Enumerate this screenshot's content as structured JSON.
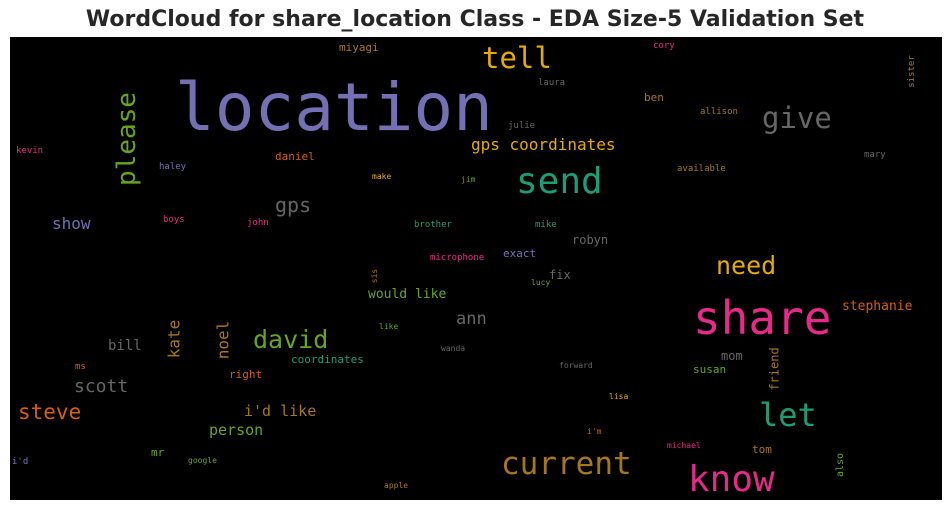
{
  "chart_data": {
    "type": "wordcloud",
    "title": "WordCloud for share_location Class - EDA Size-5 Validation Set",
    "background": "#000000",
    "colormap": "Dark2",
    "words": [
      {
        "text": "location",
        "color": "#7570b3"
      },
      {
        "text": "share",
        "color": "#e7298a"
      },
      {
        "text": "know",
        "color": "#e7298a"
      },
      {
        "text": "current",
        "color": "#a6761d"
      },
      {
        "text": "send",
        "color": "#1b9e77"
      },
      {
        "text": "let",
        "color": "#1b9e77"
      },
      {
        "text": "give",
        "color": "#666666"
      },
      {
        "text": "tell",
        "color": "#e6ab02"
      },
      {
        "text": "please",
        "color": "#66a61e"
      },
      {
        "text": "need",
        "color": "#e6ab02"
      },
      {
        "text": "david",
        "color": "#66a61e"
      },
      {
        "text": "steve",
        "color": "#d95f02"
      },
      {
        "text": "gps coordinates",
        "color": "#e6ab02"
      },
      {
        "text": "gps",
        "color": "#666666"
      },
      {
        "text": "scott",
        "color": "#666666"
      },
      {
        "text": "show",
        "color": "#7570b3"
      },
      {
        "text": "ann",
        "color": "#666666"
      },
      {
        "text": "kate",
        "color": "#a6761d"
      },
      {
        "text": "noel",
        "color": "#a6761d"
      },
      {
        "text": "i'd like",
        "color": "#a6761d"
      },
      {
        "text": "person",
        "color": "#66a61e"
      },
      {
        "text": "stephanie",
        "color": "#d95f02"
      },
      {
        "text": "bill",
        "color": "#666666"
      },
      {
        "text": "would like",
        "color": "#66a61e"
      },
      {
        "text": "robyn",
        "color": "#666666"
      },
      {
        "text": "friend",
        "color": "#a6761d"
      },
      {
        "text": "mom",
        "color": "#666666"
      },
      {
        "text": "susan",
        "color": "#66a61e"
      },
      {
        "text": "fix",
        "color": "#666666"
      },
      {
        "text": "exact",
        "color": "#7570b3"
      },
      {
        "text": "daniel",
        "color": "#d95f02"
      },
      {
        "text": "ben",
        "color": "#a6761d"
      },
      {
        "text": "miyagi",
        "color": "#a6761d"
      },
      {
        "text": "tom",
        "color": "#a6761d"
      },
      {
        "text": "also",
        "color": "#66a61e"
      },
      {
        "text": "mr",
        "color": "#66a61e"
      },
      {
        "text": "right",
        "color": "#d95f02"
      },
      {
        "text": "coordinates",
        "color": "#1b9e77"
      },
      {
        "text": "allison",
        "color": "#a6761d"
      },
      {
        "text": "available",
        "color": "#a6761d"
      },
      {
        "text": "mary",
        "color": "#666666"
      },
      {
        "text": "laura",
        "color": "#666666"
      },
      {
        "text": "julie",
        "color": "#666666"
      },
      {
        "text": "cory",
        "color": "#e7298a"
      },
      {
        "text": "sister",
        "color": "#a6761d"
      },
      {
        "text": "kevin",
        "color": "#e7298a"
      },
      {
        "text": "haley",
        "color": "#7570b3"
      },
      {
        "text": "make",
        "color": "#e6ab02"
      },
      {
        "text": "jim",
        "color": "#66a61e"
      },
      {
        "text": "boys",
        "color": "#e7298a"
      },
      {
        "text": "john",
        "color": "#e7298a"
      },
      {
        "text": "brother",
        "color": "#1b9e77"
      },
      {
        "text": "mike",
        "color": "#1b9e77"
      },
      {
        "text": "microphone",
        "color": "#e7298a"
      },
      {
        "text": "sis",
        "color": "#a6761d"
      },
      {
        "text": "lucy",
        "color": "#66a61e"
      },
      {
        "text": "like",
        "color": "#66a61e"
      },
      {
        "text": "wanda",
        "color": "#666666"
      },
      {
        "text": "forward",
        "color": "#666666"
      },
      {
        "text": "ms",
        "color": "#d95f02"
      },
      {
        "text": "lisa",
        "color": "#e6ab02"
      },
      {
        "text": "i'm",
        "color": "#d95f02"
      },
      {
        "text": "michael",
        "color": "#e7298a"
      },
      {
        "text": "i'd",
        "color": "#7570b3"
      },
      {
        "text": "google",
        "color": "#66a61e"
      },
      {
        "text": "apple",
        "color": "#a6761d"
      }
    ]
  }
}
